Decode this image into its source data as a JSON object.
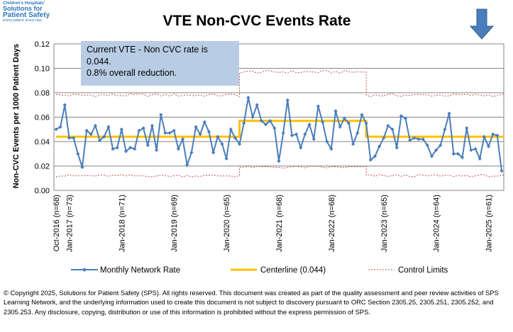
{
  "logo": {
    "line1": "Children's Hospitals'",
    "line2": "Solutions for",
    "line3": "Patient Safety",
    "line4": "Every patient. Every day."
  },
  "annotation": {
    "line1": "Current VTE - Non CVC rate is",
    "line2": "0.044.",
    "line3": "0.8% overall reduction."
  },
  "copyright": "© Copyright 2025, Solutions for Patient Safety (SPS). All rights reserved. This document was created as part of the quality assessment and peer review activities of SPS Learning Network, and the underlying information used to create this document is not subject to discovery pursuant to ORC Section 2305.25, 2305.251, 2305.252, and 2305.253. Any disclosure, copying, distribution or use of this information is prohibited without the express permission of SPS.",
  "colors": {
    "monthly": "#4A7EBB",
    "centerline": "#FFC000",
    "control": "#C0504D",
    "arrow": "#4A7EBB",
    "annotation_bg": "#B8CCE4"
  },
  "arrow_icon": "down-arrow-icon",
  "chart_data": {
    "type": "line",
    "title": "VTE Non-CVC Events Rate",
    "ylabel": "Non-CVC Events per 1000 Patient Days",
    "xlabel": "",
    "ylim": [
      0,
      0.12
    ],
    "yticks": [
      "0.00",
      "0.02",
      "0.04",
      "0.06",
      "0.08",
      "0.10",
      "0.12"
    ],
    "grid": true,
    "legend_position": "bottom",
    "x_tick_labels": [
      {
        "index": 0,
        "label": "Oct-2016 (n=68)"
      },
      {
        "index": 3,
        "label": "Jan-2017 (n=73)"
      },
      {
        "index": 15,
        "label": "Jan-2018 (n=71)"
      },
      {
        "index": 27,
        "label": "Jan-2019 (n=69)"
      },
      {
        "index": 39,
        "label": "Jan-2020 (n=65)"
      },
      {
        "index": 51,
        "label": "Jan-2021 (n=68)"
      },
      {
        "index": 63,
        "label": "Jan-2022 (n=68)"
      },
      {
        "index": 75,
        "label": "Jan-2023 (n=65)"
      },
      {
        "index": 87,
        "label": "Jan-2024 (n=64)"
      },
      {
        "index": 99,
        "label": "Jan-2025 (n=61)"
      }
    ],
    "series": [
      {
        "name": "Monthly Network Rate",
        "values": [
          0.05,
          0.052,
          0.07,
          0.043,
          0.043,
          0.03,
          0.019,
          0.049,
          0.046,
          0.053,
          0.041,
          0.044,
          0.052,
          0.034,
          0.035,
          0.05,
          0.032,
          0.035,
          0.034,
          0.049,
          0.051,
          0.037,
          0.053,
          0.033,
          0.062,
          0.047,
          0.047,
          0.049,
          0.034,
          0.042,
          0.021,
          0.031,
          0.052,
          0.046,
          0.056,
          0.048,
          0.031,
          0.044,
          0.038,
          0.026,
          0.05,
          0.043,
          0.038,
          0.055,
          0.076,
          0.06,
          0.07,
          0.057,
          0.054,
          0.057,
          0.051,
          0.024,
          0.047,
          0.074,
          0.045,
          0.046,
          0.035,
          0.046,
          0.054,
          0.042,
          0.069,
          0.056,
          0.04,
          0.034,
          0.065,
          0.052,
          0.059,
          0.055,
          0.038,
          0.047,
          0.062,
          0.055,
          0.025,
          0.028,
          0.036,
          0.043,
          0.053,
          0.05,
          0.035,
          0.061,
          0.059,
          0.041,
          0.043,
          0.042,
          0.042,
          0.037,
          0.028,
          0.033,
          0.037,
          0.05,
          0.063,
          0.03,
          0.03,
          0.027,
          0.051,
          0.033,
          0.034,
          0.026,
          0.044,
          0.036,
          0.046,
          0.045,
          0.016
        ]
      },
      {
        "name": "Centerline (0.044)",
        "segments": [
          {
            "start": 0,
            "end": 42,
            "value": 0.044
          },
          {
            "start": 42,
            "end": 71,
            "value": 0.057
          },
          {
            "start": 71,
            "end": 102,
            "value": 0.044
          }
        ]
      },
      {
        "name": "Control Limits",
        "upper": [
          {
            "start": 0,
            "end": 42,
            "value": 0.078
          },
          {
            "start": 42,
            "end": 71,
            "value": 0.097
          },
          {
            "start": 71,
            "end": 102,
            "value": 0.078
          }
        ],
        "lower": [
          {
            "start": 0,
            "end": 42,
            "value": 0.012
          },
          {
            "start": 42,
            "end": 71,
            "value": 0.019
          },
          {
            "start": 71,
            "end": 102,
            "value": 0.012
          }
        ]
      }
    ]
  }
}
